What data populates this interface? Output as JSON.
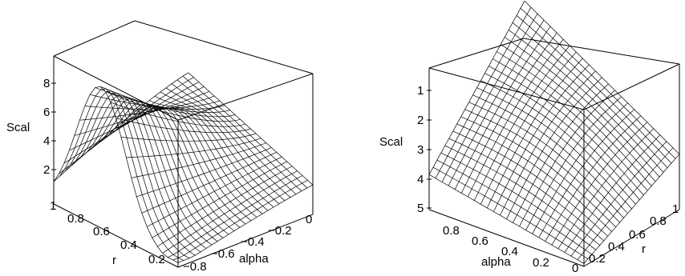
{
  "chart_data": [
    {
      "type": "surface3d",
      "zlabel": "Scal",
      "xlabel": "alpha",
      "ylabel": "r",
      "zticks": [
        "2",
        "4",
        "6",
        "8"
      ],
      "xticks": [
        "−0.8",
        "−0.6",
        "−0.4",
        "−0.2",
        "0"
      ],
      "yticks": [
        "0.2",
        "0.4",
        "0.6",
        "0.8",
        "1"
      ],
      "xlim": [
        -0.8,
        0
      ],
      "ylim": [
        0,
        1
      ],
      "zlim": [
        0,
        9.5
      ],
      "grid": "24x24 wireframe mesh",
      "surface_samples": {
        "r_at_alpha_-0.8_edge": [
          0.2,
          0.4,
          0.6,
          0.8,
          1.0
        ],
        "scal_at_alpha_-0.8_edge": [
          3.0,
          6.5,
          9.2,
          7.0,
          2.8
        ],
        "scal_at_alpha_0_edge": [
          1.2,
          2.0,
          2.8,
          3.6,
          4.6
        ]
      }
    },
    {
      "type": "surface3d",
      "zlabel": "Scal",
      "xlabel": "alpha",
      "ylabel": "r",
      "zticks": [
        "1",
        "2",
        "3",
        "4",
        "5"
      ],
      "xticks": [
        "0.8",
        "0.6",
        "0.4",
        "0.2",
        "0"
      ],
      "yticks": [
        "0.2",
        "0.4",
        "0.6",
        "0.8",
        "1"
      ],
      "xlim": [
        0,
        0.8
      ],
      "ylim": [
        0,
        1
      ],
      "zlim": [
        0,
        5
      ],
      "z_axis_reversed": true,
      "grid": "24x24 wireframe mesh",
      "surface_samples": {
        "scal_corner_alpha_0.8_r_0": 3.8,
        "scal_corner_alpha_0_r_0": 4.9,
        "scal_corner_alpha_0.8_r_1": 0.0,
        "scal_corner_alpha_0_r_1": 3.0
      }
    }
  ]
}
